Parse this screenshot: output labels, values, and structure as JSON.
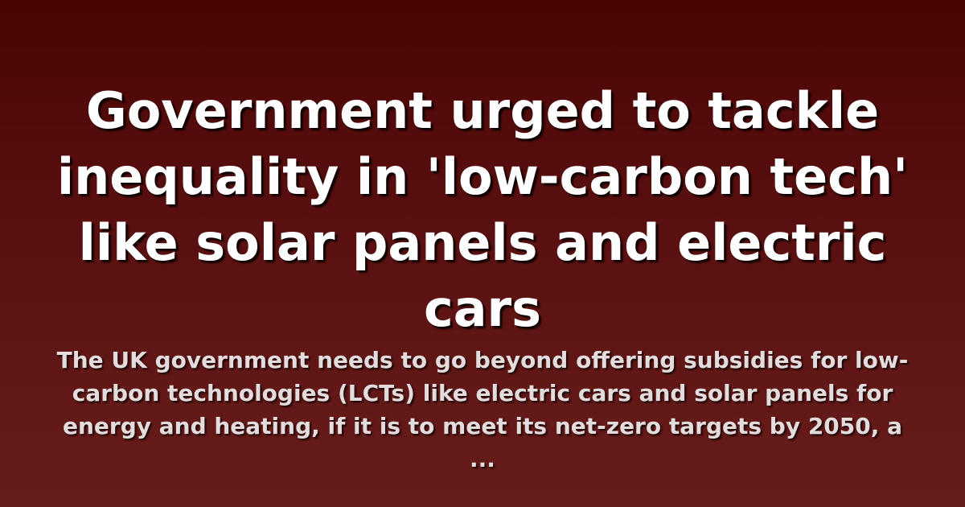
{
  "article": {
    "headline": "Government urged to tackle inequality in 'low-carbon tech' like solar panels and electric cars",
    "summary": "The UK government needs to go beyond offering subsidies for low-carbon technologies (LCTs) like electric cars and solar panels for energy and heating, if it is to meet its net-zero targets by 2050, a ..."
  },
  "colors": {
    "background_top": "#4a0404",
    "background_bottom": "#661d1a",
    "headline_text": "#ffffff",
    "summary_text": "#e4dcdc"
  }
}
